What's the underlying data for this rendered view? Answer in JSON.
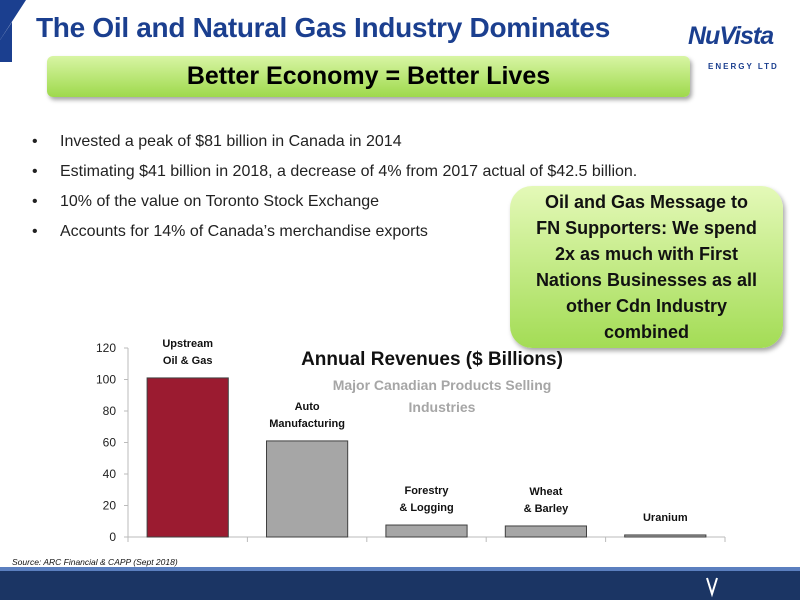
{
  "header": {
    "title": "The Oil and Natural Gas Industry Dominates",
    "logo": "NuVista",
    "logo_sub": "ENERGY LTD"
  },
  "banner": "Better Economy = Better Lives",
  "bullets": [
    "Invested a peak of $81 billion in Canada in 2014",
    "Estimating $41 billion in 2018, a decrease of 4% from 2017 actual of $42.5 billion.",
    "10% of the value on Toronto Stock Exchange",
    "Accounts for 14% of Canada’s merchandise exports"
  ],
  "callout": {
    "lines": [
      "Oil and Gas Message to",
      "FN Supporters:  We spend",
      "2x as much with First",
      "Nations Businesses as all",
      "other Cdn Industry",
      "combined"
    ]
  },
  "chart_data": {
    "type": "bar",
    "title": "Annual Revenues ($ Billions)",
    "subtitle": "Major Canadian Products Selling Industries",
    "categories": [
      "Upstream\nOil & Gas",
      "Auto\nManufacturing",
      "Forestry\n& Logging",
      "Wheat\n& Barley",
      "Uranium"
    ],
    "values": [
      101,
      61,
      7.6,
      7,
      1.3
    ],
    "colors": [
      "#9b1b30",
      "#a6a6a6",
      "#a6a6a6",
      "#a6a6a6",
      "#a6a6a6"
    ],
    "ylim": [
      0,
      120
    ],
    "yticks": [
      0,
      20,
      40,
      60,
      80,
      100,
      120
    ],
    "grid": false
  },
  "source": "Source: ARC Financial  & CAPP (Sept 2018)"
}
